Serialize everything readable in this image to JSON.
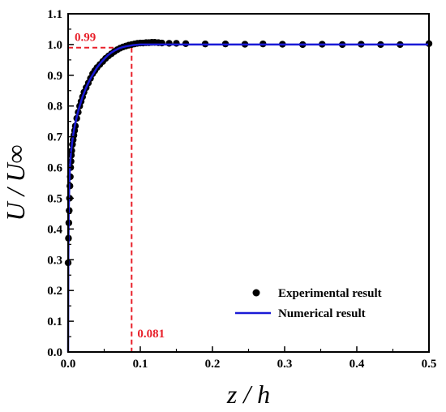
{
  "chart_data": {
    "type": "scatter",
    "xlabel": "z / h",
    "ylabel": "U / U∞",
    "xlim": [
      0,
      0.5
    ],
    "ylim": [
      0,
      1.1
    ],
    "x_ticks": [
      "0.0",
      "0.1",
      "0.2",
      "0.3",
      "0.4",
      "0.5"
    ],
    "y_ticks": [
      "0.0",
      "0.1",
      "0.2",
      "0.3",
      "0.4",
      "0.5",
      "0.6",
      "0.7",
      "0.8",
      "0.9",
      "1.0",
      "1.1"
    ],
    "grid": false,
    "legend_position": "bottom-right",
    "series": [
      {
        "name": "Experimental result",
        "kind": "scatter",
        "color": "#000000",
        "x": [
          0.0,
          0.0005,
          0.001,
          0.0015,
          0.002,
          0.0025,
          0.003,
          0.0035,
          0.004,
          0.0045,
          0.005,
          0.006,
          0.007,
          0.008,
          0.009,
          0.01,
          0.012,
          0.014,
          0.016,
          0.018,
          0.02,
          0.022,
          0.025,
          0.028,
          0.031,
          0.034,
          0.037,
          0.04,
          0.044,
          0.048,
          0.052,
          0.056,
          0.06,
          0.064,
          0.068,
          0.072,
          0.076,
          0.08,
          0.084,
          0.088,
          0.092,
          0.096,
          0.1,
          0.104,
          0.108,
          0.112,
          0.116,
          0.12,
          0.125,
          0.13,
          0.14,
          0.15,
          0.163,
          0.19,
          0.218,
          0.245,
          0.27,
          0.297,
          0.325,
          0.352,
          0.38,
          0.406,
          0.433,
          0.46,
          0.5
        ],
        "y": [
          0.29,
          0.37,
          0.42,
          0.46,
          0.5,
          0.54,
          0.57,
          0.6,
          0.62,
          0.64,
          0.655,
          0.675,
          0.69,
          0.705,
          0.72,
          0.735,
          0.76,
          0.78,
          0.8,
          0.815,
          0.83,
          0.845,
          0.86,
          0.875,
          0.89,
          0.905,
          0.915,
          0.925,
          0.935,
          0.945,
          0.955,
          0.963,
          0.97,
          0.977,
          0.983,
          0.988,
          0.992,
          0.995,
          0.998,
          1.0,
          1.002,
          1.004,
          1.005,
          1.005,
          1.006,
          1.006,
          1.007,
          1.007,
          1.006,
          1.005,
          1.004,
          1.004,
          1.003,
          1.002,
          1.002,
          1.001,
          1.002,
          1.001,
          1.0,
          1.001,
          1.0,
          1.001,
          1.0,
          1.0,
          1.003
        ]
      },
      {
        "name": "Numerical result",
        "kind": "line",
        "color": "#1a1ad6",
        "x": [
          0.0,
          0.0003,
          0.0008,
          0.0015,
          0.0025,
          0.004,
          0.006,
          0.008,
          0.01,
          0.013,
          0.016,
          0.02,
          0.025,
          0.03,
          0.035,
          0.04,
          0.045,
          0.05,
          0.055,
          0.06,
          0.065,
          0.07,
          0.075,
          0.08,
          0.085,
          0.09,
          0.095,
          0.1,
          0.11,
          0.12,
          0.15,
          0.2,
          0.3,
          0.4,
          0.5
        ],
        "y": [
          0.0,
          0.3,
          0.45,
          0.53,
          0.6,
          0.65,
          0.69,
          0.72,
          0.745,
          0.775,
          0.8,
          0.83,
          0.86,
          0.885,
          0.905,
          0.925,
          0.94,
          0.953,
          0.965,
          0.974,
          0.981,
          0.987,
          0.991,
          0.994,
          0.996,
          0.998,
          0.999,
          1.0,
          1.0,
          1.0,
          1.0,
          1.0,
          1.0,
          1.0,
          1.0
        ]
      }
    ],
    "annotations": [
      {
        "text": "0.99",
        "x": 0.0,
        "y": 0.99,
        "color": "#e8202a",
        "style": "dashed",
        "direction": "horizontal"
      },
      {
        "text": "0.081",
        "x": 0.088,
        "y": 0.0,
        "color": "#e8202a",
        "style": "dashed",
        "direction": "vertical"
      }
    ]
  }
}
